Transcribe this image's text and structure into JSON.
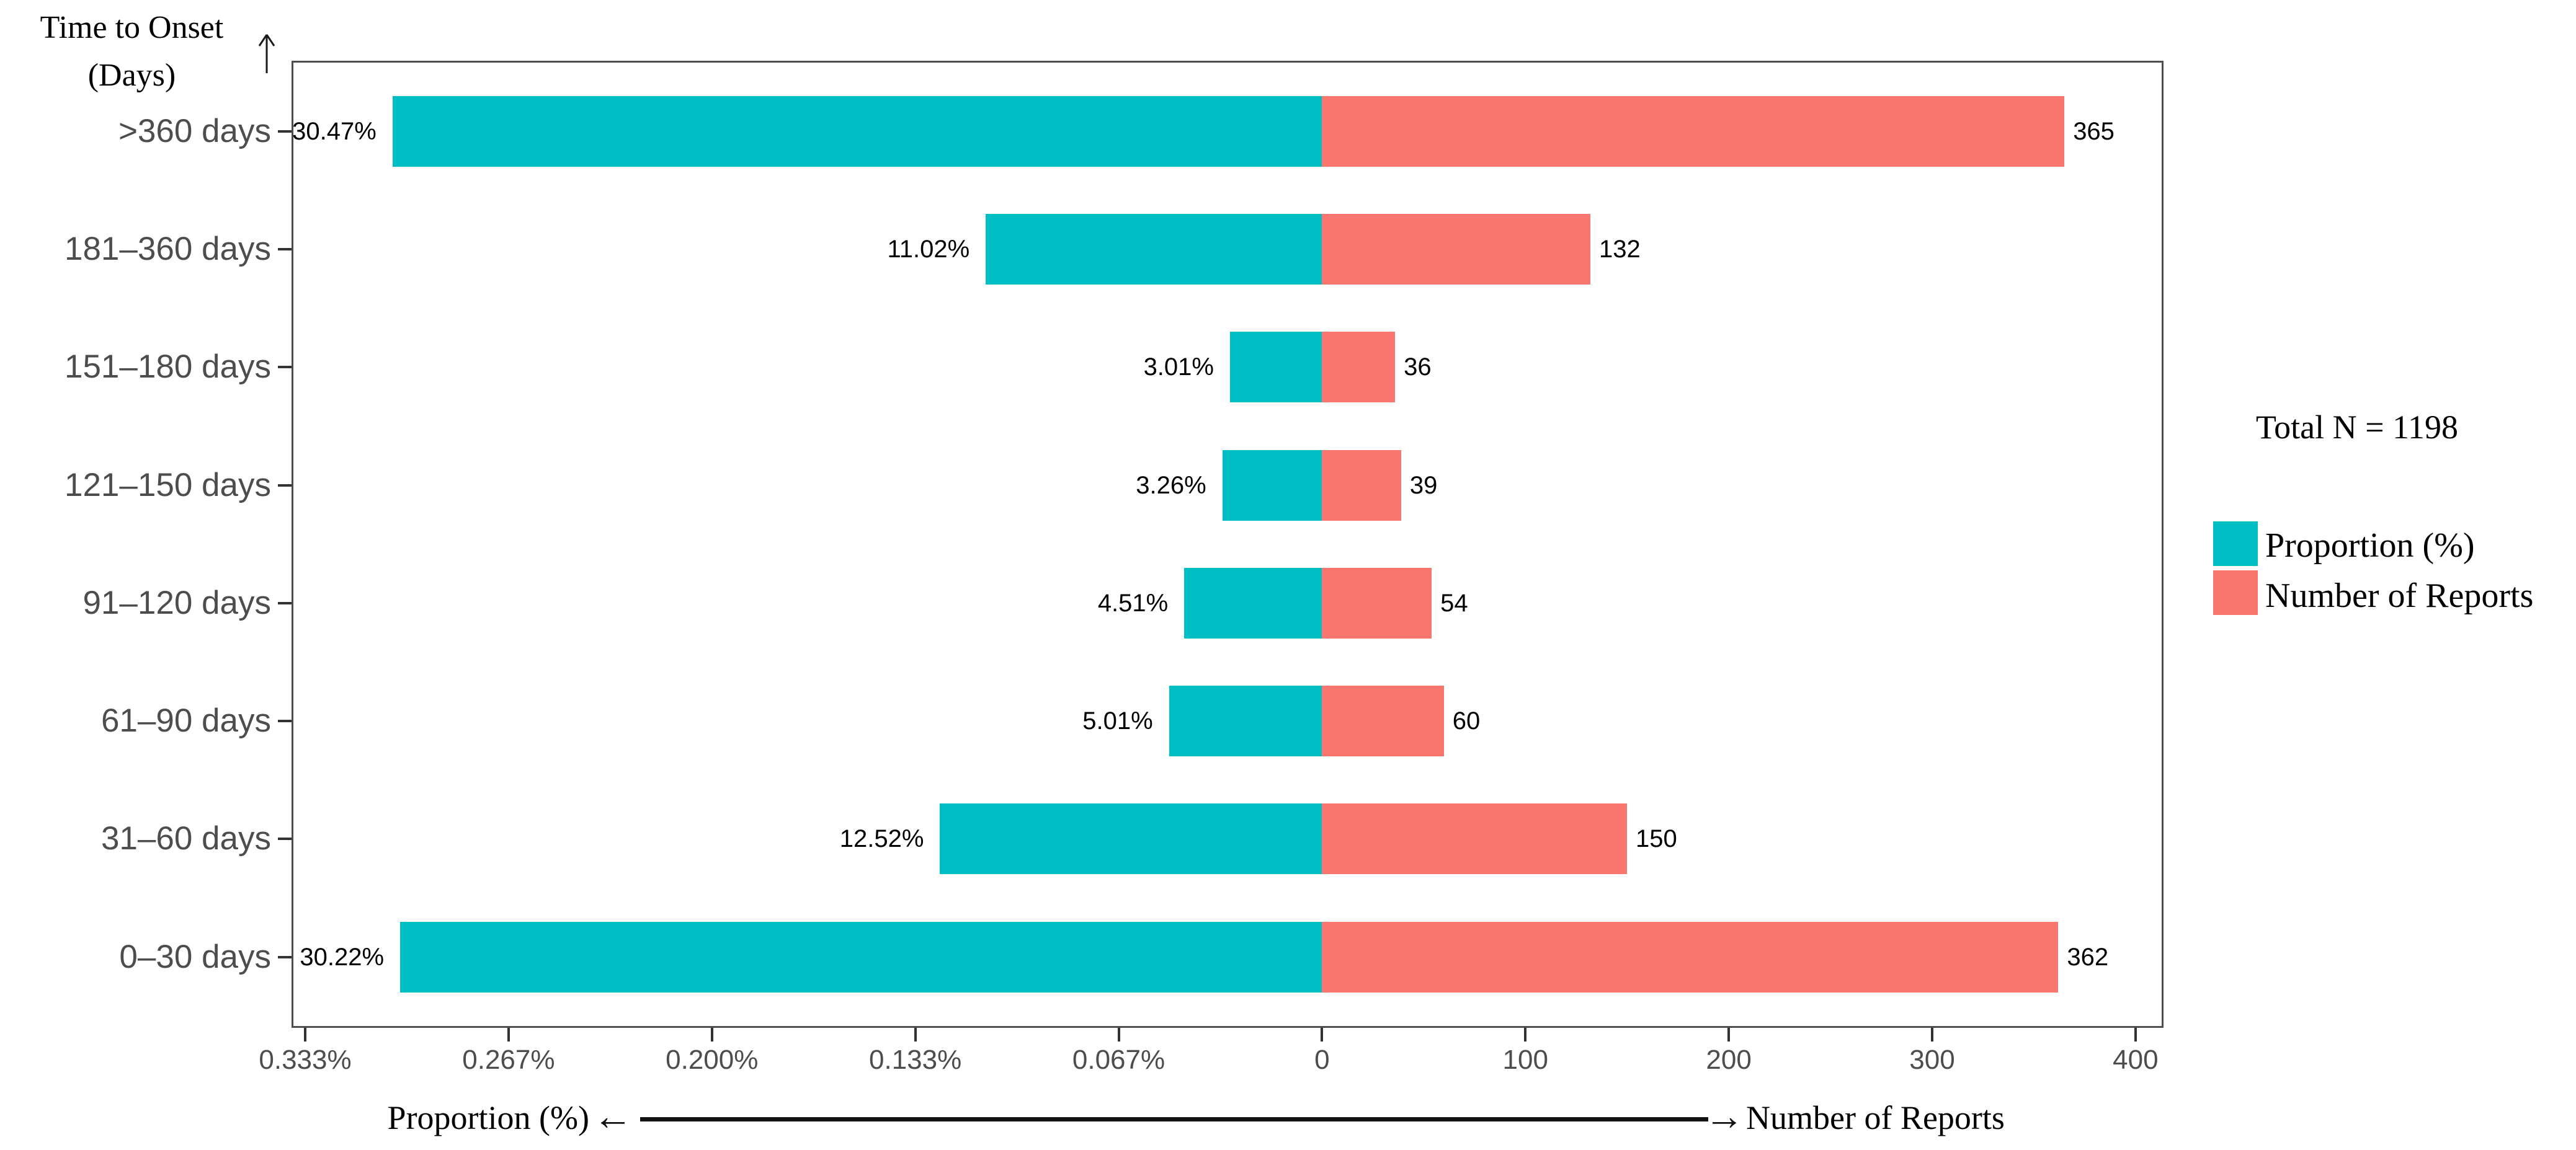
{
  "titles": {
    "y_axis_line1": "Time to Onset",
    "y_axis_line2": "(Days)",
    "x_left": "Proportion (%)",
    "x_right": "Number of Reports",
    "left_arrow": "←",
    "right_arrow": "→"
  },
  "legend": {
    "total": "Total N = 1198",
    "items": [
      {
        "label": "Proportion (%)",
        "color": "#00BFC4"
      },
      {
        "label": "Number of Reports",
        "color": "#F8766D"
      }
    ]
  },
  "chart_data": {
    "type": "bar",
    "variant": "diverging-butterfly",
    "title": "Time to Onset (Days)",
    "categories": [
      ">360 days",
      "181–360 days",
      "151–180 days",
      "121–150 days",
      "91–120 days",
      "61–90 days",
      "31–60 days",
      "0–30 days"
    ],
    "series": [
      {
        "name": "Proportion (%)",
        "side": "left",
        "color": "#00BFC4",
        "values": [
          30.47,
          11.02,
          3.01,
          3.26,
          4.51,
          5.01,
          12.52,
          30.22
        ],
        "labels": [
          "30.47%",
          "11.02%",
          "3.01%",
          "3.26%",
          "4.51%",
          "5.01%",
          "12.52%",
          "30.22%"
        ]
      },
      {
        "name": "Number of Reports",
        "side": "right",
        "color": "#F8766D",
        "values": [
          365,
          132,
          36,
          39,
          54,
          60,
          150,
          362
        ],
        "labels": [
          "365",
          "132",
          "36",
          "39",
          "54",
          "60",
          "150",
          "362"
        ]
      }
    ],
    "x_ticks": [
      "0.333%",
      "0.267%",
      "0.200%",
      "0.133%",
      "0.067%",
      "0",
      "100",
      "200",
      "300",
      "400"
    ],
    "left_axis": {
      "tick_labels": [
        "0.333%",
        "0.267%",
        "0.200%",
        "0.133%",
        "0.067%",
        "0"
      ],
      "max_percent_scale": 33.33
    },
    "right_axis": {
      "tick_labels": [
        "0",
        "100",
        "200",
        "300",
        "400"
      ],
      "max": 400
    },
    "total_n": 1198,
    "grid": false,
    "legend_position": "right",
    "ylabel": "Time to Onset (Days)",
    "xlabel_left": "Proportion (%)",
    "xlabel_right": "Number of Reports"
  }
}
